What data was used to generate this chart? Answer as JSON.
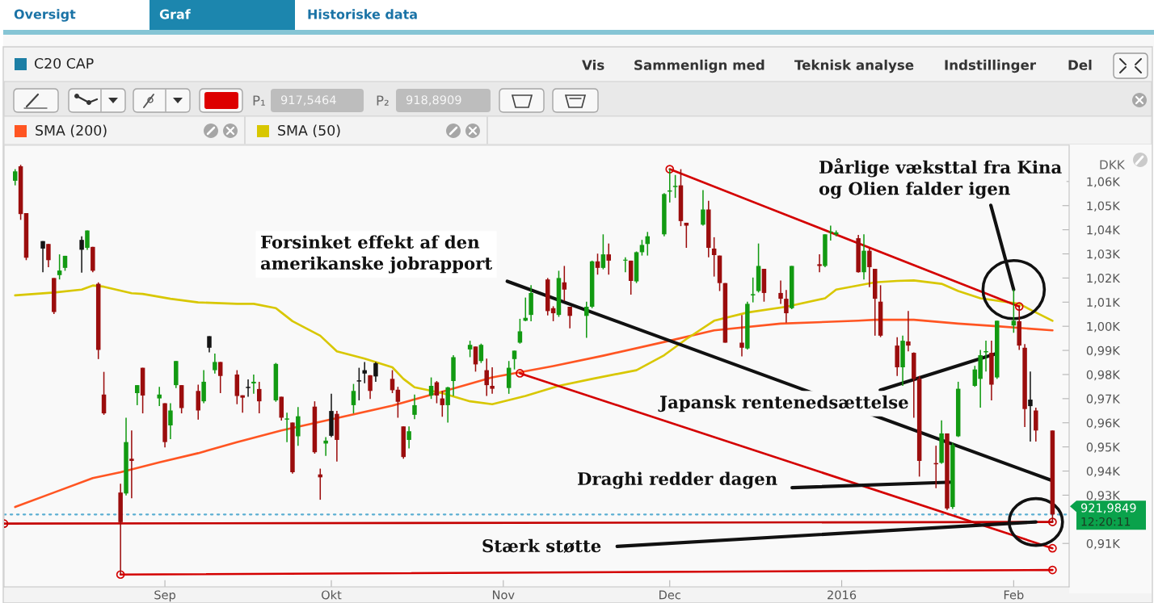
{
  "chart_data": {
    "type": "candlestick",
    "title": "C20 CAP",
    "ylabel": "DKK",
    "x": [
      "2015-08-05",
      "2015-08-06",
      "2015-08-07",
      "2015-08-10",
      "2015-08-11",
      "2015-08-12",
      "2015-08-13",
      "2015-08-14",
      "2015-08-17",
      "2015-08-18",
      "2015-08-19",
      "2015-08-20",
      "2015-08-21",
      "2015-08-24",
      "2015-08-25",
      "2015-08-26",
      "2015-08-27",
      "2015-08-28",
      "2015-08-31",
      "2015-09-01",
      "2015-09-02",
      "2015-09-03",
      "2015-09-04",
      "2015-09-07",
      "2015-09-08",
      "2015-09-09",
      "2015-09-10",
      "2015-09-11",
      "2015-09-14",
      "2015-09-15",
      "2015-09-16",
      "2015-09-17",
      "2015-09-18",
      "2015-09-21",
      "2015-09-22",
      "2015-09-23",
      "2015-09-24",
      "2015-09-25",
      "2015-09-28",
      "2015-09-29",
      "2015-09-30",
      "2015-10-01",
      "2015-10-02",
      "2015-10-05",
      "2015-10-06",
      "2015-10-07",
      "2015-10-08",
      "2015-10-09",
      "2015-10-12",
      "2015-10-13",
      "2015-10-14",
      "2015-10-15",
      "2015-10-16",
      "2015-10-19",
      "2015-10-20",
      "2015-10-21",
      "2015-10-22",
      "2015-10-23",
      "2015-10-26",
      "2015-10-27",
      "2015-10-28",
      "2015-10-29",
      "2015-10-30",
      "2015-11-02",
      "2015-11-03",
      "2015-11-04",
      "2015-11-05",
      "2015-11-06",
      "2015-11-09",
      "2015-11-10",
      "2015-11-11",
      "2015-11-12",
      "2015-11-13",
      "2015-11-16",
      "2015-11-17",
      "2015-11-18",
      "2015-11-19",
      "2015-11-20",
      "2015-11-23",
      "2015-11-24",
      "2015-11-25",
      "2015-11-26",
      "2015-11-27",
      "2015-11-30",
      "2015-12-01",
      "2015-12-02",
      "2015-12-03",
      "2015-12-04",
      "2015-12-07",
      "2015-12-08",
      "2015-12-09",
      "2015-12-10",
      "2015-12-11",
      "2015-12-14",
      "2015-12-15",
      "2015-12-16",
      "2015-12-17",
      "2015-12-18",
      "2015-12-21",
      "2015-12-22",
      "2015-12-23",
      "2015-12-28",
      "2015-12-29",
      "2015-12-30",
      "2015-12-31",
      "2016-01-04",
      "2016-01-05",
      "2016-01-06",
      "2016-01-07",
      "2016-01-08",
      "2016-01-11",
      "2016-01-12",
      "2016-01-13",
      "2016-01-14",
      "2016-01-15",
      "2016-01-18",
      "2016-01-19",
      "2016-01-20",
      "2016-01-21",
      "2016-01-22",
      "2016-01-25",
      "2016-01-26",
      "2016-01-27",
      "2016-01-28",
      "2016-01-29",
      "2016-02-01",
      "2016-02-02",
      "2016-02-03",
      "2016-02-04",
      "2016-02-05",
      "2016-02-08"
    ],
    "ohlc": [
      [
        1060.3,
        1065.1,
        1058.4,
        1064.2
      ],
      [
        1066.3,
        1066.9,
        1044.1,
        1046.5
      ],
      [
        1046.9,
        1046.9,
        1027.4,
        1028.4
      ],
      [
        1032.2,
        1035.3,
        1022.4,
        1035.3
      ],
      [
        1034.1,
        1034.1,
        1024.5,
        1027.4
      ],
      [
        1020.0,
        1020.0,
        1005.1,
        1005.9
      ],
      [
        1021.2,
        1029.8,
        1019.4,
        1023.1
      ],
      [
        1024.2,
        1029.2,
        1023.0,
        1029.2
      ],
      [
        1031.7,
        1037.3,
        1022.2,
        1035.8
      ],
      [
        1032.5,
        1039.7,
        1031.7,
        1039.7
      ],
      [
        1032.9,
        1032.9,
        1022.4,
        1023.0
      ],
      [
        1017.6,
        1018.2,
        986.4,
        990.2
      ],
      [
        971.7,
        981.1,
        963.3,
        963.9
      ],
      [
        931.1,
        934.7,
        897.1,
        918.8
      ],
      [
        930.7,
        962.1,
        929.9,
        952.0
      ],
      [
        945.1,
        956.8,
        928.7,
        944.2
      ],
      [
        972.3,
        975.6,
        967.3,
        975.6
      ],
      [
        982.8,
        982.8,
        963.9,
        971.3
      ],
      [
        970.1,
        974.9,
        966.9,
        971.7
      ],
      [
        968.1,
        968.1,
        949.8,
        952.0
      ],
      [
        958.9,
        968.1,
        953.2,
        965.1
      ],
      [
        975.6,
        985.6,
        974.4,
        985.6
      ],
      [
        975.6,
        975.6,
        963.9,
        966.1
      ],
      [
        973.2,
        975.8,
        961.3,
        965.1
      ],
      [
        968.9,
        981.8,
        968.1,
        977.0
      ],
      [
        991.1,
        995.9,
        989.2,
        995.9
      ],
      [
        981.8,
        988.7,
        980.4,
        985.2
      ],
      [
        985.2,
        985.2,
        972.3,
        979.4
      ],
      [
        980.0,
        981.8,
        967.7,
        971.1
      ],
      [
        971.4,
        971.4,
        964.2,
        970.4
      ],
      [
        974.4,
        978.0,
        970.8,
        974.9
      ],
      [
        976.3,
        980.0,
        972.0,
        977.0
      ],
      [
        974.0,
        977.0,
        963.9,
        968.9
      ],
      [
        969.3,
        984.8,
        968.7,
        984.4
      ],
      [
        970.8,
        970.8,
        960.9,
        962.1
      ],
      [
        961.3,
        964.2,
        952.0,
        961.8
      ],
      [
        960.1,
        960.1,
        938.9,
        939.5
      ],
      [
        954.4,
        966.5,
        950.5,
        962.7
      ],
      [
        966.7,
        968.9,
        947.2,
        947.8
      ],
      [
        938.6,
        941.0,
        928.1,
        937.4
      ],
      [
        951.4,
        954.1,
        946.3,
        952.6
      ],
      [
        954.6,
        972.0,
        954.1,
        964.9
      ],
      [
        963.7,
        964.9,
        943.9,
        952.9
      ],
      [
        967.3,
        976.1,
        963.9,
        973.2
      ],
      [
        977.1,
        982.8,
        969.3,
        977.6
      ],
      [
        980.4,
        985.2,
        976.4,
        981.8
      ],
      [
        979.7,
        979.7,
        969.9,
        973.2
      ],
      [
        979.2,
        985.2,
        977.0,
        984.7
      ],
      [
        978.2,
        981.8,
        972.3,
        973.5
      ],
      [
        973.7,
        974.9,
        962.1,
        968.7
      ],
      [
        958.5,
        958.5,
        945.1,
        945.8
      ],
      [
        952.9,
        958.5,
        949.4,
        956.5
      ],
      [
        963.3,
        971.7,
        961.5,
        967.3
      ],
      [
        971.3,
        978.8,
        969.9,
        975.3
      ],
      [
        976.8,
        977.3,
        968.1,
        971.3
      ],
      [
        970.1,
        973.2,
        962.5,
        967.3
      ],
      [
        967.3,
        974.9,
        960.1,
        974.7
      ],
      [
        977.3,
        988.0,
        971.1,
        987.2
      ],
      [
        990.4,
        994.0,
        987.2,
        992.3
      ],
      [
        991.6,
        991.6,
        981.2,
        984.2
      ],
      [
        985.6,
        992.8,
        984.8,
        992.3
      ],
      [
        981.8,
        986.6,
        971.1,
        975.6
      ],
      [
        975.3,
        983.0,
        972.0,
        974.1
      ],
      [
        974.4,
        985.6,
        972.0,
        982.8
      ],
      [
        986.4,
        989.9,
        982.1,
        989.9
      ],
      [
        993.2,
        1003.1,
        992.8,
        997.9
      ],
      [
        1002.3,
        1011.9,
        1002.1,
        1003.5
      ],
      [
        1004.7,
        1017.0,
        1002.1,
        1013.8
      ],
      [
        1019.4,
        1020.0,
        1004.5,
        1006.3
      ],
      [
        1007.5,
        1008.3,
        1002.1,
        1005.4
      ],
      [
        1004.7,
        1023.0,
        1003.9,
        1020.0
      ],
      [
        1018.2,
        1025.0,
        1010.5,
        1015.2
      ],
      [
        1008.1,
        1008.1,
        999.1,
        1004.3
      ],
      [
        1004.3,
        1010.2,
        995.2,
        1008.1
      ],
      [
        1008.1,
        1027.2,
        1007.5,
        1026.9
      ],
      [
        1026.9,
        1030.1,
        1021.4,
        1024.2
      ],
      [
        1024.2,
        1038.1,
        1023.6,
        1029.8
      ],
      [
        1029.8,
        1034.3,
        1021.4,
        1027.2
      ],
      [
        1027.2,
        1028.6,
        1022.4,
        1027.6
      ],
      [
        1027.2,
        1027.2,
        1013.1,
        1018.8
      ],
      [
        1018.6,
        1031.0,
        1017.9,
        1030.7
      ],
      [
        1030.7,
        1035.8,
        1029.3,
        1033.7
      ],
      [
        1034.1,
        1039.1,
        1029.3,
        1037.3
      ],
      [
        1038.1,
        1055.2,
        1037.3,
        1054.8
      ],
      [
        1055.8,
        1065.1,
        1051.3,
        1056.3
      ],
      [
        1057.7,
        1062.7,
        1053.2,
        1058.2
      ],
      [
        1058.4,
        1065.1,
        1041.5,
        1043.6
      ],
      [
        1042.9,
        1042.9,
        1032.5,
        1041.7
      ],
      [
        1042.1,
        1056.4,
        1041.7,
        1048.4
      ],
      [
        1048.4,
        1052.0,
        1028.6,
        1032.5
      ],
      [
        1032.2,
        1036.9,
        1020.6,
        1029.5
      ],
      [
        1029.3,
        1029.3,
        1014.6,
        1017.9
      ],
      [
        1017.9,
        1017.9,
        993.2,
        993.2
      ],
      [
        993.2,
        1004.7,
        987.5,
        991.1
      ],
      [
        990.8,
        1010.2,
        990.4,
        1009.3
      ],
      [
        1012.8,
        1020.2,
        1009.9,
        1013.3
      ],
      [
        1014.6,
        1034.3,
        1014.0,
        1025.0
      ],
      [
        1023.8,
        1023.8,
        1010.2,
        1013.8
      ],
      [
        1013.8,
        1019.0,
        1009.3,
        1011.4
      ],
      [
        1011.4,
        1015.0,
        1001.5,
        1005.4
      ],
      [
        1007.5,
        1025.0,
        1007.1,
        1025.0
      ],
      [
        1025.7,
        1029.8,
        1022.4,
        1025.0
      ],
      [
        1025.0,
        1038.1,
        1024.5,
        1038.1
      ],
      [
        1038.9,
        1041.7,
        1035.5,
        1039.3
      ],
      [
        1038.1,
        1039.7,
        1037.3,
        1038.9
      ],
      [
        1036.5,
        1037.9,
        1022.2,
        1022.4
      ],
      [
        1022.4,
        1038.1,
        1019.4,
        1031.3
      ],
      [
        1031.3,
        1032.2,
        1016.2,
        1024.5
      ],
      [
        1023.8,
        1023.8,
        996.1,
        1011.4
      ],
      [
        1010.2,
        1017.0,
        995.5,
        996.1
      ],
      [
        992.0,
        995.5,
        979.4,
        983.0
      ],
      [
        983.0,
        996.1,
        975.3,
        994.0
      ],
      [
        993.7,
        1006.3,
        989.6,
        992.0
      ],
      [
        989.0,
        989.2,
        962.1,
        978.2
      ],
      [
        978.2,
        979.4,
        937.7,
        944.2
      ],
      [
        943.3,
        950.5,
        932.9,
        942.8
      ],
      [
        943.4,
        961.0,
        943.0,
        955.6
      ],
      [
        955.6,
        955.6,
        923.9,
        924.5
      ],
      [
        925.1,
        951.7,
        924.3,
        950.8
      ],
      [
        954.4,
        977.0,
        954.1,
        974.1
      ],
      [
        975.3,
        983.6,
        974.9,
        982.1
      ],
      [
        978.2,
        990.2,
        966.3,
        988.0
      ],
      [
        989.2,
        994.0,
        981.2,
        989.7
      ],
      [
        989.0,
        994.0,
        969.3,
        975.8
      ],
      [
        978.8,
        1002.3,
        978.2,
        1002.3
      ],
      [
        1000.3,
        1015.2,
        997.3,
        1002.3
      ],
      [
        1002.1,
        1008.7,
        990.2,
        992.0
      ],
      [
        991.1,
        992.6,
        958.2,
        965.7
      ],
      [
        966.9,
        981.2,
        952.2,
        969.6
      ],
      [
        965.1,
        966.3,
        952.2,
        956.8
      ],
      [
        956.8,
        956.8,
        918.8,
        922.0
      ]
    ],
    "colors": [
      "#129a12",
      "#9b0d0d",
      "#9b0d0d",
      "#141414",
      "#9b0d0d",
      "#9b0d0d",
      "#129a12",
      "#129a12",
      "#141414",
      "#129a12",
      "#9b0d0d",
      "#9b0d0d",
      "#9b0d0d",
      "#9b0d0d",
      "#129a12",
      "#9b0d0d",
      "#129a12",
      "#9b0d0d",
      "#129a12",
      "#9b0d0d",
      "#129a12",
      "#129a12",
      "#9b0d0d",
      "#9b0d0d",
      "#129a12",
      "#141414",
      "#129a12",
      "#9b0d0d",
      "#9b0d0d",
      "#9b0d0d",
      "#141414",
      "#129a12",
      "#9b0d0d",
      "#129a12",
      "#9b0d0d",
      "#129a12",
      "#9b0d0d",
      "#129a12",
      "#9b0d0d",
      "#9b0d0d",
      "#129a12",
      "#141414",
      "#9b0d0d",
      "#129a12",
      "#141414",
      "#141414",
      "#9b0d0d",
      "#141414",
      "#9b0d0d",
      "#9b0d0d",
      "#9b0d0d",
      "#129a12",
      "#129a12",
      "#129a12",
      "#9b0d0d",
      "#9b0d0d",
      "#129a12",
      "#129a12",
      "#129a12",
      "#9b0d0d",
      "#129a12",
      "#9b0d0d",
      "#9b0d0d",
      "#129a12",
      "#129a12",
      "#129a12",
      "#129a12",
      "#129a12",
      "#9b0d0d",
      "#9b0d0d",
      "#129a12",
      "#9b0d0d",
      "#9b0d0d",
      "#129a12",
      "#129a12",
      "#9b0d0d",
      "#129a12",
      "#9b0d0d",
      "#129a12",
      "#9b0d0d",
      "#129a12",
      "#129a12",
      "#129a12",
      "#129a12",
      "#129a12",
      "#129a12",
      "#9b0d0d",
      "#9b0d0d",
      "#129a12",
      "#9b0d0d",
      "#9b0d0d",
      "#9b0d0d",
      "#9b0d0d",
      "#9b0d0d",
      "#129a12",
      "#129a12",
      "#129a12",
      "#9b0d0d",
      "#9b0d0d",
      "#9b0d0d",
      "#129a12",
      "#9b0d0d",
      "#129a12",
      "#129a12",
      "#129a12",
      "#9b0d0d",
      "#129a12",
      "#9b0d0d",
      "#9b0d0d",
      "#9b0d0d",
      "#9b0d0d",
      "#129a12",
      "#9b0d0d",
      "#9b0d0d",
      "#9b0d0d",
      "#9b0d0d",
      "#129a12",
      "#9b0d0d",
      "#129a12",
      "#129a12",
      "#129a12",
      "#129a12",
      "#129a12",
      "#9b0d0d",
      "#129a12",
      "#129a12",
      "#9b0d0d",
      "#9b0d0d",
      "#141414",
      "#9b0d0d",
      "#9b0d0d"
    ],
    "series": [
      {
        "type": "line",
        "name": "SMA (200)",
        "color": "#ff5522",
        "x": [
          "2015-08-05",
          "2015-08-12",
          "2015-08-19",
          "2015-08-24",
          "2015-08-31",
          "2015-09-07",
          "2015-09-14",
          "2015-09-22",
          "2015-09-30",
          "2015-10-12",
          "2015-10-21",
          "2015-10-30",
          "2015-11-10",
          "2015-11-19",
          "2015-11-30",
          "2015-12-09",
          "2015-12-21",
          "2016-01-04",
          "2016-01-07",
          "2016-01-14",
          "2016-01-22",
          "2016-01-29",
          "2016-02-08"
        ],
        "values": [
          925.1,
          931.1,
          937.1,
          939.5,
          943.6,
          947.4,
          952.0,
          956.8,
          960.9,
          967.1,
          972.9,
          978.8,
          983.5,
          987.8,
          993.5,
          998.3,
          1001.1,
          1002.3,
          1002.7,
          1002.7,
          1001.1,
          1000.0,
          998.3
        ]
      },
      {
        "type": "line",
        "name": "SMA (50)",
        "color": "#d8c700",
        "x": [
          "2015-08-05",
          "2015-08-12",
          "2015-08-17",
          "2015-08-19",
          "2015-08-21",
          "2015-08-26",
          "2015-08-28",
          "2015-09-02",
          "2015-09-07",
          "2015-09-14",
          "2015-09-17",
          "2015-09-21",
          "2015-09-22",
          "2015-09-24",
          "2015-09-29",
          "2015-10-02",
          "2015-10-07",
          "2015-10-12",
          "2015-10-14",
          "2015-10-16",
          "2015-10-21",
          "2015-10-26",
          "2015-10-30",
          "2015-11-05",
          "2015-11-11",
          "2015-11-17",
          "2015-11-25",
          "2015-11-30",
          "2015-12-04",
          "2015-12-09",
          "2015-12-15",
          "2015-12-22",
          "2015-12-29",
          "2015-12-31",
          "2016-01-07",
          "2016-01-11",
          "2016-01-14",
          "2016-01-19",
          "2016-01-22",
          "2016-01-26",
          "2016-02-02",
          "2016-02-04",
          "2016-02-08"
        ],
        "values": [
          1012.8,
          1014.0,
          1015.2,
          1016.9,
          1016.4,
          1013.7,
          1013.4,
          1011.4,
          1009.9,
          1009.3,
          1009.3,
          1007.5,
          1005.7,
          1002.1,
          996.1,
          989.6,
          986.6,
          983.0,
          978.2,
          974.7,
          972.3,
          968.9,
          967.7,
          971.1,
          975.3,
          978.2,
          981.8,
          988.0,
          994.7,
          1002.3,
          1005.7,
          1008.1,
          1011.6,
          1015.2,
          1018.2,
          1018.8,
          1019.0,
          1017.6,
          1014.6,
          1011.6,
          1009.3,
          1006.9,
          1002.3
        ]
      },
      {
        "type": "line",
        "color": "#d40000",
        "marker": "circle",
        "x": [
          "2015-12-01",
          "2016-02-02"
        ],
        "values": [
          1065.1,
          1008.2
        ]
      },
      {
        "type": "line",
        "color": "#d40000",
        "marker": "circle",
        "x": [
          "2015-11-04",
          "2016-02-08"
        ],
        "values": [
          980.5,
          908.0
        ]
      },
      {
        "type": "line",
        "color": "#d40000",
        "marker": "circle",
        "x": [
          "2015-08-24",
          "2016-02-08"
        ],
        "values": [
          897.1,
          899.0
        ]
      },
      {
        "type": "line",
        "color": "#c40000",
        "marker": "circle",
        "x": [
          "2015-08-03",
          "2016-02-08"
        ],
        "values": [
          918.2,
          918.9
        ]
      }
    ],
    "ref_lines": [
      {
        "axis": "y",
        "value": 921.9849,
        "label": "921,9849",
        "color": "#5aaed2",
        "line_style": "dotted"
      }
    ],
    "xlim": [
      "2015-08-03",
      "2016-02-11"
    ],
    "xticks": [
      {
        "value": "2015-09-01",
        "label": "Sep"
      },
      {
        "value": "2015-10-01",
        "label": "Okt"
      },
      {
        "value": "2015-11-01",
        "label": "Nov"
      },
      {
        "value": "2015-12-01",
        "label": "Dec"
      },
      {
        "value": "2016-01-01",
        "label": "2016"
      },
      {
        "value": "2016-02-01",
        "label": "Feb"
      }
    ],
    "ylim": [
      892,
      1075
    ],
    "yticks": [
      {
        "value": 1060,
        "label": "1,06K"
      },
      {
        "value": 1050,
        "label": "1,05K"
      },
      {
        "value": 1040,
        "label": "1,04K"
      },
      {
        "value": 1030,
        "label": "1,03K"
      },
      {
        "value": 1020,
        "label": "1,02K"
      },
      {
        "value": 1010,
        "label": "1,01K"
      },
      {
        "value": 1000,
        "label": "1,00K"
      },
      {
        "value": 990,
        "label": "0,99K"
      },
      {
        "value": 980,
        "label": "0,98K"
      },
      {
        "value": 970,
        "label": "0,97K"
      },
      {
        "value": 960,
        "label": "0,96K"
      },
      {
        "value": 950,
        "label": "0,95K"
      },
      {
        "value": 940,
        "label": "0,94K"
      },
      {
        "value": 930,
        "label": "0,93K"
      },
      {
        "value": 910,
        "label": "0,91K"
      }
    ],
    "legend": "top left",
    "annotations": [
      "Oversigt",
      "Graf",
      "Historiske data",
      "Vis",
      "Sammenlign med",
      "Teknisk analyse",
      "Indstillinger",
      "Del",
      "P₁",
      "917,5464",
      "P₂",
      "918,8909",
      {
        "text": "Forsinket effekt af den\namerikanske jobrapport",
        "x": "2016-02-08",
        "y": 936.0
      },
      {
        "text": "Dårlige væksttal fra Kina\nog Olien falder igen",
        "x": "2016-02-01",
        "y": 1015.2
      },
      {
        "text": "Japansk rentenedsættelse",
        "x": "2016-01-29",
        "y": 988.8
      },
      {
        "text": "Draghi redder dagen",
        "x": "2016-01-21",
        "y": 935.4
      },
      {
        "text": "Stærk støtte",
        "x": "2016-02-05",
        "y": 918.9
      },
      "12:20:11"
    ]
  }
}
